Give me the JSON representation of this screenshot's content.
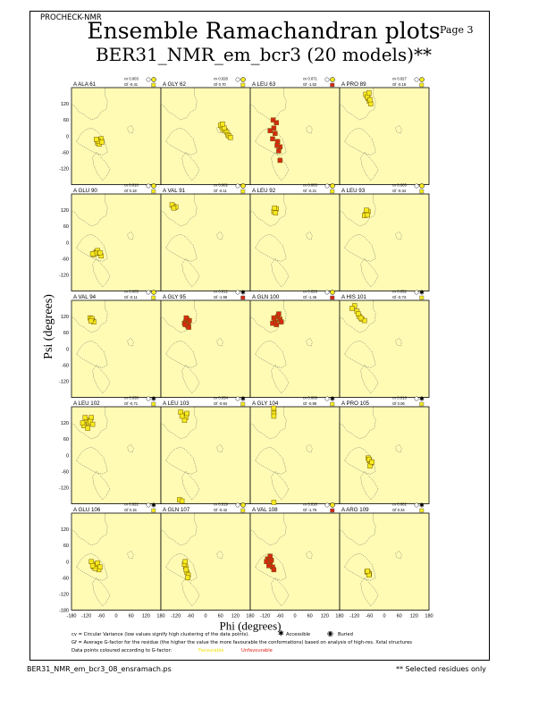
{
  "header": {
    "program": "PROCHECK-NMR",
    "page": "Page  3",
    "title": "Ensemble Ramachandran plots",
    "subtitle": "BER31_NMR_em_bcr3 (20 models)**"
  },
  "footer": {
    "filename": "BER31_NMR_em_bcr3_08_ensramach.ps",
    "note": "** Selected residues only"
  },
  "legend": {
    "cv_text": "cv = Circular Variance (low values signify high clustering of the data points).",
    "accessible": "Accessible",
    "buried": "Buried",
    "gf_text": "Gf = Average G-factor for the residue (the higher the value the more favourable the conformations) based on analysis of high-res. Xstal structures",
    "colour_text": "Data points coloured according to G-factor:",
    "favourable": "Favourable",
    "unfavourable": "Unfavourable"
  },
  "colors": {
    "panel_bg": "#fffbb5",
    "favourable": "#f5ea1e",
    "unfavourable": "#d42a12",
    "point_edge": "#7a5a00"
  },
  "chart_data": {
    "type": "scatter",
    "xlabel": "Phi (degrees)",
    "ylabel": "Psi (degrees)",
    "xlim": [
      -180,
      180
    ],
    "ylim": [
      -180,
      180
    ],
    "xticks": [
      "-180",
      "-120",
      "-60",
      "0",
      "60",
      "120",
      "180"
    ],
    "yticks": [
      "120",
      "60",
      "0",
      "-60",
      "-120"
    ],
    "ytick_bottom": "-180",
    "panels": [
      {
        "label": "A ALA 61",
        "cv": "cv 0.003",
        "gf": "Gf -0.41",
        "access": "buried",
        "gf_class": "favourable",
        "points": [
          [
            -70,
            -20
          ],
          [
            -65,
            -15
          ],
          [
            -75,
            -25
          ],
          [
            -60,
            -10
          ],
          [
            -68,
            -30
          ],
          [
            -72,
            -18
          ],
          [
            -58,
            -22
          ],
          [
            -80,
            -12
          ]
        ]
      },
      {
        "label": "A GLY 62",
        "cv": "cv 0.028",
        "gf": "Gf 0.70",
        "access": "buried",
        "gf_class": "favourable",
        "points": [
          [
            65,
            35
          ],
          [
            70,
            25
          ],
          [
            80,
            20
          ],
          [
            60,
            40
          ],
          [
            85,
            15
          ],
          [
            75,
            30
          ],
          [
            90,
            5
          ],
          [
            95,
            0
          ],
          [
            100,
            -5
          ],
          [
            68,
            45
          ]
        ]
      },
      {
        "label": "A LEU 63",
        "cv": "cv 0.071",
        "gf": "Gf -1.52",
        "access": "buried",
        "gf_class": "unfavourable",
        "points": [
          [
            -70,
            -20
          ],
          [
            -80,
            10
          ],
          [
            -75,
            50
          ],
          [
            -85,
            30
          ],
          [
            -60,
            -40
          ],
          [
            -65,
            -55
          ],
          [
            -90,
            -10
          ],
          [
            -100,
            20
          ],
          [
            -72,
            -35
          ],
          [
            -88,
            60
          ],
          [
            -60,
            -90
          ]
        ]
      },
      {
        "label": "A PRO 89",
        "cv": "cv 0.027",
        "gf": "Gf -0.16",
        "access": "buried",
        "gf_class": "favourable",
        "points": [
          [
            -70,
            150
          ],
          [
            -65,
            140
          ],
          [
            -75,
            155
          ],
          [
            -60,
            130
          ],
          [
            -55,
            120
          ],
          [
            -68,
            145
          ],
          [
            -62,
            160
          ],
          [
            -58,
            135
          ]
        ]
      },
      {
        "label": "A GLU 90",
        "cv": "cv 0.010",
        "gf": "Gf 0.18",
        "access": "buried",
        "gf_class": "favourable",
        "points": [
          [
            -70,
            -40
          ],
          [
            -80,
            -35
          ],
          [
            -90,
            -45
          ],
          [
            -60,
            -50
          ],
          [
            -75,
            -30
          ],
          [
            -85,
            -40
          ],
          [
            -65,
            -38
          ],
          [
            -95,
            -42
          ]
        ]
      },
      {
        "label": "A VAL 91",
        "cv": "cv 0.002",
        "gf": "Gf -0.11",
        "access": "buried",
        "gf_class": "favourable",
        "points": [
          [
            -130,
            135
          ],
          [
            -125,
            130
          ],
          [
            -135,
            140
          ],
          [
            -120,
            132
          ],
          [
            -128,
            128
          ]
        ]
      },
      {
        "label": "A LEU 92",
        "cv": "cv 0.003",
        "gf": "Gf -0.21",
        "access": "buried",
        "gf_class": "favourable",
        "points": [
          [
            -80,
            120
          ],
          [
            -75,
            125
          ],
          [
            -85,
            115
          ],
          [
            -78,
            110
          ],
          [
            -82,
            128
          ]
        ]
      },
      {
        "label": "A LEU 93",
        "cv": "cv 0.005",
        "gf": "Gf -0.34",
        "access": "buried",
        "gf_class": "favourable",
        "points": [
          [
            -70,
            110
          ],
          [
            -75,
            105
          ],
          [
            -65,
            115
          ],
          [
            -80,
            100
          ],
          [
            -72,
            120
          ],
          [
            -68,
            102
          ]
        ]
      },
      {
        "label": "A VAL 94",
        "cv": "cv 0.005",
        "gf": "Gf -0.11",
        "access": "buried",
        "gf_class": "favourable",
        "points": [
          [
            -100,
            110
          ],
          [
            -95,
            105
          ],
          [
            -105,
            115
          ],
          [
            -90,
            100
          ],
          [
            -98,
            112
          ],
          [
            -102,
            104
          ]
        ]
      },
      {
        "label": "A GLY 95",
        "cv": "cv 0.012",
        "gf": "Gf -1.99",
        "access": "accessible",
        "gf_class": "unfavourable",
        "points": [
          [
            -80,
            100
          ],
          [
            -70,
            90
          ],
          [
            -75,
            110
          ],
          [
            -85,
            95
          ],
          [
            -65,
            105
          ],
          [
            -72,
            85
          ],
          [
            -78,
            115
          ],
          [
            -68,
            80
          ],
          [
            -82,
            90
          ]
        ]
      },
      {
        "label": "A GLN 100",
        "cv": "cv 0.029",
        "gf": "Gf -1.46",
        "access": "buried",
        "gf_class": "unfavourable",
        "points": [
          [
            -70,
            120
          ],
          [
            -80,
            100
          ],
          [
            -60,
            110
          ],
          [
            -75,
            90
          ],
          [
            -65,
            130
          ],
          [
            -85,
            115
          ],
          [
            -55,
            100
          ],
          [
            -90,
            95
          ]
        ]
      },
      {
        "label": "A HIS 101",
        "cv": "cv 0.052",
        "gf": "Gf -0.73",
        "access": "accessible",
        "gf_class": "favourable",
        "points": [
          [
            -120,
            160
          ],
          [
            -110,
            140
          ],
          [
            -100,
            120
          ],
          [
            -90,
            110
          ],
          [
            -80,
            105
          ],
          [
            -130,
            150
          ],
          [
            -105,
            130
          ],
          [
            -95,
            115
          ]
        ]
      },
      {
        "label": "A LEU 102",
        "cv": "cv 0.030",
        "gf": "Gf -0.71",
        "access": "accessible",
        "gf_class": "favourable",
        "points": [
          [
            -120,
            130
          ],
          [
            -110,
            120
          ],
          [
            -100,
            140
          ],
          [
            -130,
            110
          ],
          [
            -115,
            100
          ],
          [
            -105,
            125
          ],
          [
            -125,
            140
          ],
          [
            -95,
            115
          ],
          [
            -135,
            120
          ]
        ]
      },
      {
        "label": "A LEU 103",
        "cv": "cv 0.034",
        "gf": "Gf -0.94",
        "access": "accessible",
        "gf_class": "favourable",
        "points": [
          [
            -90,
            150
          ],
          [
            -80,
            140
          ],
          [
            -100,
            160
          ],
          [
            -85,
            130
          ],
          [
            -95,
            145
          ],
          [
            -75,
            155
          ],
          [
            -105,
            -165
          ],
          [
            -95,
            -170
          ]
        ]
      },
      {
        "label": "A GLY 104",
        "cv": "cv 0.009",
        "gf": "Gf -0.89",
        "access": "accessible",
        "gf_class": "favourable",
        "points": [
          [
            -85,
            165
          ],
          [
            -85,
            155
          ],
          [
            -85,
            145
          ],
          [
            -85,
            175
          ],
          [
            -85,
            -175
          ]
        ]
      },
      {
        "label": "A PRO 105",
        "cv": "cv 0.016",
        "gf": "Gf 0.06",
        "access": "accessible",
        "gf_class": "favourable",
        "points": [
          [
            -65,
            -10
          ],
          [
            -60,
            -20
          ],
          [
            -55,
            -30
          ],
          [
            -58,
            -40
          ],
          [
            -62,
            -15
          ],
          [
            -50,
            -25
          ]
        ]
      },
      {
        "label": "A GLU 106",
        "cv": "cv 0.022",
        "gf": "Gf 0.15",
        "access": "accessible",
        "gf_class": "favourable",
        "points": [
          [
            -90,
            -20
          ],
          [
            -80,
            -10
          ],
          [
            -100,
            0
          ],
          [
            -70,
            -30
          ],
          [
            -85,
            -25
          ],
          [
            -95,
            -15
          ],
          [
            -75,
            -5
          ],
          [
            -65,
            -20
          ]
        ]
      },
      {
        "label": "A GLN 107",
        "cv": "cv 0.019",
        "gf": "Gf -0.42",
        "access": "buried",
        "gf_class": "favourable",
        "points": [
          [
            -80,
            -20
          ],
          [
            -75,
            -40
          ],
          [
            -70,
            -50
          ],
          [
            -85,
            -10
          ],
          [
            -78,
            -30
          ],
          [
            -72,
            -60
          ],
          [
            -82,
            0
          ]
        ]
      },
      {
        "label": "A VAL 108",
        "cv": "cv 0.018",
        "gf": "Gf -1.79",
        "access": "buried",
        "gf_class": "unfavourable",
        "points": [
          [
            -110,
            10
          ],
          [
            -100,
            -10
          ],
          [
            -90,
            -20
          ],
          [
            -115,
            0
          ],
          [
            -95,
            5
          ],
          [
            -105,
            -15
          ],
          [
            -85,
            -30
          ],
          [
            -100,
            20
          ]
        ]
      },
      {
        "label": "A ARG 109",
        "cv": "cv 0.002",
        "gf": "Gf 0.34",
        "access": "accessible",
        "gf_class": "favourable",
        "points": [
          [
            -65,
            -40
          ],
          [
            -60,
            -45
          ],
          [
            -70,
            -38
          ],
          [
            -62,
            -50
          ],
          [
            -68,
            -35
          ]
        ]
      }
    ]
  }
}
